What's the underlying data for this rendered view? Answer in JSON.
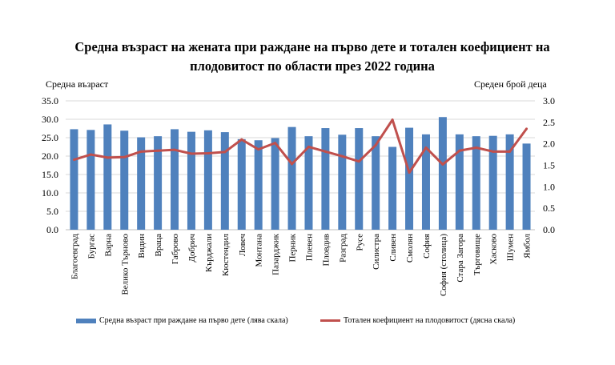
{
  "chart_data": {
    "type": "bar+line",
    "title": "Средна възраст на жената при раждане на първо дете и тотален коефициент на плодовитост по области през 2022 година",
    "ylabel_left": "Средна възраст",
    "ylabel_right": "Среден брой деца",
    "ylim_left": [
      0,
      35
    ],
    "ylim_right": [
      0,
      3
    ],
    "yticks_left": [
      "0.0",
      "5.0",
      "10.0",
      "15.0",
      "20.0",
      "25.0",
      "30.0",
      "35.0"
    ],
    "yticks_right": [
      "0.0",
      "0.5",
      "1.0",
      "1.5",
      "2.0",
      "2.5",
      "3.0"
    ],
    "grid": true,
    "legend_position": "bottom",
    "categories": [
      "Благоевград",
      "Бургас",
      "Варна",
      "Велико Търново",
      "Видин",
      "Враца",
      "Габрово",
      "Добрич",
      "Кърджали",
      "Кюстендил",
      "Ловеч",
      "Монтана",
      "Пазарджик",
      "Перник",
      "Плевен",
      "Пловдив",
      "Разград",
      "Русе",
      "Силистра",
      "Сливен",
      "Смолян",
      "София",
      "София (столица)",
      "Стара Загора",
      "Търговище",
      "Хасково",
      "Шумен",
      "Ямбол"
    ],
    "series": [
      {
        "name": "Средна възраст при раждане на първо дете (лява скала)",
        "type": "bar",
        "axis": "left",
        "color": "#4f81bd",
        "values": [
          27.3,
          27.1,
          28.6,
          26.9,
          25.1,
          25.4,
          27.3,
          26.6,
          27.0,
          26.5,
          24.6,
          24.3,
          24.9,
          27.9,
          25.4,
          27.6,
          25.8,
          27.6,
          25.4,
          22.5,
          27.7,
          25.9,
          30.6,
          25.9,
          25.4,
          25.5,
          25.9,
          23.4
        ]
      },
      {
        "name": "Тотален коефициент на плодовитост (дясна скала)",
        "type": "line",
        "axis": "right",
        "color": "#c0504d",
        "values": [
          1.63,
          1.75,
          1.68,
          1.69,
          1.82,
          1.84,
          1.86,
          1.77,
          1.78,
          1.81,
          2.1,
          1.87,
          2.02,
          1.53,
          1.93,
          1.82,
          1.71,
          1.59,
          1.97,
          2.56,
          1.33,
          1.91,
          1.52,
          1.84,
          1.91,
          1.82,
          1.82,
          2.35
        ]
      }
    ]
  }
}
